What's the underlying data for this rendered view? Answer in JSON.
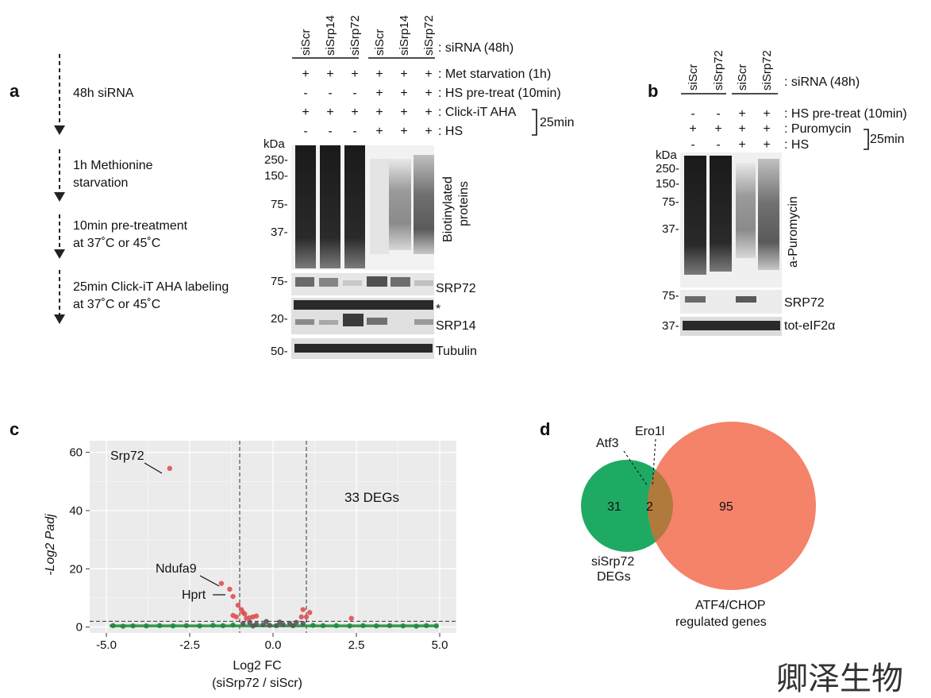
{
  "panel_labels": {
    "a": "a",
    "b": "b",
    "c": "c",
    "d": "d"
  },
  "panel_a": {
    "workflow": [
      {
        "line1": "48h siRNA",
        "line2": ""
      },
      {
        "line1": "1h Methionine",
        "line2": "starvation"
      },
      {
        "line1": "10min pre-treatment",
        "line2": "at 37˚C or 45˚C"
      },
      {
        "line1": "25min Click-iT AHA labeling",
        "line2": "at 37˚C or 45˚C"
      }
    ],
    "lanes": [
      "siScr",
      "siSrp14",
      "siSrp72",
      "siScr",
      "siSrp14",
      "siSrp72"
    ],
    "conditions": [
      {
        "label": ": siRNA (48h)",
        "signs": []
      },
      {
        "label": ": Met starvation (1h)",
        "signs": [
          "+",
          "+",
          "+",
          "+",
          "+",
          "+"
        ]
      },
      {
        "label": ": HS pre-treat (10min)",
        "signs": [
          "-",
          "-",
          "-",
          "+",
          "+",
          "+"
        ]
      },
      {
        "label": ": Click-iT AHA",
        "signs": [
          "+",
          "+",
          "+",
          "+",
          "+",
          "+"
        ]
      },
      {
        "label": ": HS",
        "signs": [
          "-",
          "-",
          "-",
          "+",
          "+",
          "+"
        ]
      }
    ],
    "bracket_label": "25min",
    "kda_header": "kDa",
    "markers": [
      "250-",
      "150-",
      "75-",
      "37-",
      "75-",
      "20-",
      "50-"
    ],
    "blot_labels": {
      "biotin_1": "Biotinylated",
      "biotin_2": "proteins",
      "srp72": "SRP72",
      "star": "*",
      "srp14": "SRP14",
      "tubulin": "Tubulin"
    }
  },
  "panel_b": {
    "lanes": [
      "siScr",
      "siSrp72",
      "siScr",
      "siSrp72"
    ],
    "conditions": [
      {
        "label": ": siRNA (48h)",
        "signs": []
      },
      {
        "label": ": HS pre-treat (10min)",
        "signs": [
          "-",
          "-",
          "+",
          "+"
        ]
      },
      {
        "label": ": Puromycin",
        "signs": [
          "+",
          "+",
          "+",
          "+"
        ]
      },
      {
        "label": ": HS",
        "signs": [
          "-",
          "-",
          "+",
          "+"
        ]
      }
    ],
    "bracket_label": "25min",
    "kda_header": "kDa",
    "markers": [
      "250-",
      "150-",
      "75-",
      "37-",
      "75-",
      "37-"
    ],
    "blot_labels": {
      "puromycin": "a-Puromycin",
      "srp72": "SRP72",
      "eif2": "tot-eIF2α"
    }
  },
  "panel_c": {
    "annotations": {
      "srp72": "Srp72",
      "ndufa9": "Ndufa9",
      "hprt": "Hprt",
      "degs": "33 DEGs"
    }
  },
  "panel_d": {
    "set_a": {
      "label_1": "siSrp72",
      "label_2": "DEGs",
      "count": "31",
      "color": "#1faa64"
    },
    "set_b": {
      "label_1": "ATF4/CHOP",
      "label_2": "regulated genes",
      "count": "95",
      "color": "#f4836a"
    },
    "overlap": {
      "count": "2",
      "color": "#b07a3c"
    },
    "genes": {
      "atf3": "Atf3",
      "ero1l": "Ero1l"
    }
  },
  "watermark": "卿泽生物",
  "chart_data": {
    "type": "scatter",
    "title": "",
    "xlabel": "Log2 FC",
    "xlabel_2": "(siSrp72 / siScr)",
    "ylabel": "-Log2 Padj",
    "xlim": [
      -5.5,
      5.5
    ],
    "ylim": [
      -2,
      64
    ],
    "x_ticks": [
      -5.0,
      -2.5,
      0.0,
      2.5,
      5.0
    ],
    "x_tick_labels": [
      "-5.0",
      "-2.5",
      "0.0",
      "2.5",
      "5.0"
    ],
    "y_ticks": [
      0,
      20,
      40,
      60
    ],
    "y_tick_labels": [
      "0",
      "20",
      "40",
      "60"
    ],
    "thresholds": {
      "log2fc": [
        -1,
        1
      ],
      "neg_log2_padj": 2
    },
    "grid": true,
    "series": [
      {
        "name": "significant",
        "color": "#e05050",
        "points": [
          [
            -3.1,
            54.5
          ],
          [
            -1.55,
            15
          ],
          [
            -1.3,
            13
          ],
          [
            -1.2,
            10.5
          ],
          [
            -1.05,
            7.5
          ],
          [
            -0.95,
            6
          ],
          [
            -0.85,
            4.5
          ],
          [
            -1.1,
            3.5
          ],
          [
            -0.6,
            3.5
          ],
          [
            -0.8,
            3
          ],
          [
            -0.7,
            3.2
          ],
          [
            -0.5,
            3.8
          ],
          [
            -0.9,
            5
          ],
          [
            -1.2,
            4
          ],
          [
            0.9,
            6
          ],
          [
            1.1,
            5
          ],
          [
            0.85,
            3.5
          ],
          [
            1.0,
            3.5
          ],
          [
            2.35,
            3
          ]
        ]
      },
      {
        "name": "fold change only",
        "color": "#1e8a3c",
        "points": [
          [
            -4.8,
            0.5
          ],
          [
            -4.5,
            0.3
          ],
          [
            -4.2,
            0.4
          ],
          [
            -3.8,
            0.4
          ],
          [
            -3.4,
            0.5
          ],
          [
            -3.0,
            0.4
          ],
          [
            -2.6,
            0.5
          ],
          [
            -2.2,
            0.4
          ],
          [
            -1.8,
            0.6
          ],
          [
            -1.5,
            0.5
          ],
          [
            -1.2,
            0.7
          ],
          [
            1.2,
            0.6
          ],
          [
            1.5,
            0.5
          ],
          [
            1.9,
            0.5
          ],
          [
            2.3,
            0.4
          ],
          [
            2.7,
            0.5
          ],
          [
            3.1,
            0.4
          ],
          [
            3.5,
            0.5
          ],
          [
            3.9,
            0.4
          ],
          [
            4.3,
            0.3
          ],
          [
            4.6,
            0.5
          ],
          [
            4.9,
            0.4
          ]
        ]
      },
      {
        "name": "not significant",
        "color": "#555555",
        "points": [
          [
            -0.9,
            1.2
          ],
          [
            -0.7,
            1.6
          ],
          [
            -0.5,
            1.0
          ],
          [
            -0.3,
            0.8
          ],
          [
            -0.1,
            0.6
          ],
          [
            0.1,
            0.5
          ],
          [
            0.3,
            0.9
          ],
          [
            0.5,
            1.3
          ],
          [
            0.7,
            1.6
          ],
          [
            0.9,
            1.2
          ],
          [
            -0.2,
            1.9
          ],
          [
            0.2,
            1.7
          ],
          [
            -0.6,
            0.4
          ],
          [
            0.6,
            0.5
          ]
        ]
      }
    ]
  }
}
